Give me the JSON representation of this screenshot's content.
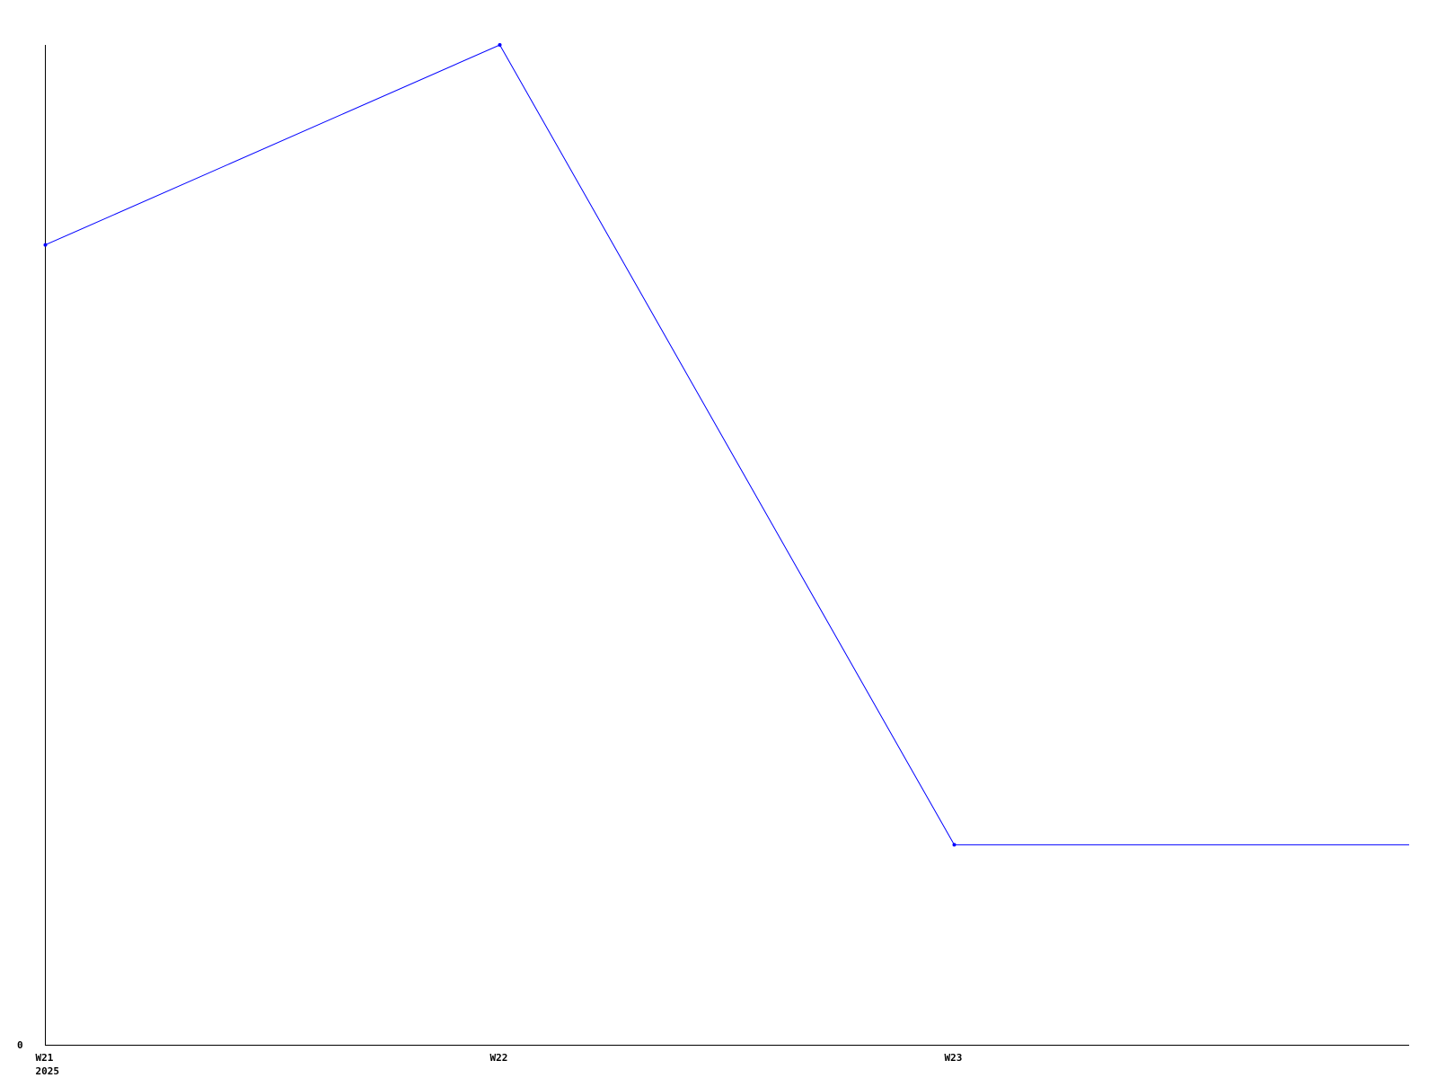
{
  "chart_data": {
    "type": "line",
    "categories": [
      "W21",
      "W22",
      "W23"
    ],
    "x_sublabels": [
      "2025",
      "",
      ""
    ],
    "series": [
      {
        "values": [
          4,
          5,
          1
        ],
        "color": "#0000ff"
      }
    ],
    "y_tick_labels": [
      "0"
    ],
    "ylim": [
      0,
      5
    ],
    "grid": false,
    "legend": "none",
    "title": "",
    "xlabel": "",
    "ylabel": ""
  }
}
